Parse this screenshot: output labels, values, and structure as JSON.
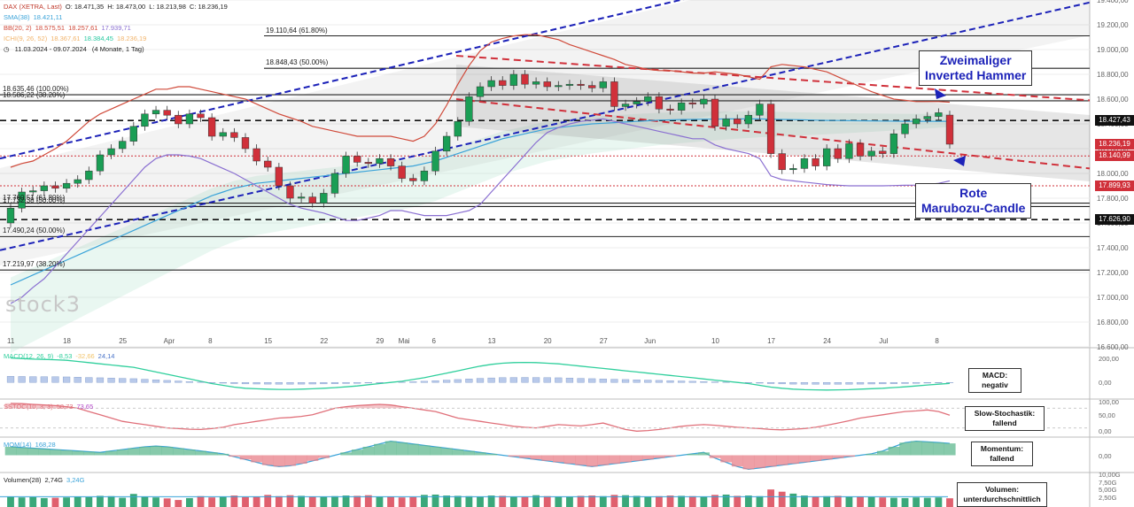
{
  "header": {
    "row1": [
      {
        "text": "DAX (XETRA, Last)",
        "color": "#c0392b"
      },
      {
        "text": "O: 18.471,35",
        "color": "#222"
      },
      {
        "text": "H: 18.473,00",
        "color": "#222"
      },
      {
        "text": "L: 18.213,98",
        "color": "#222"
      },
      {
        "text": "C: 18.236,19",
        "color": "#222"
      }
    ],
    "row2": [
      {
        "text": "SMA(38)",
        "color": "#3aa3d9"
      },
      {
        "text": "18.421,11",
        "color": "#3aa3d9"
      }
    ],
    "row3": [
      {
        "text": "BB(20, 2)",
        "color": "#d04a3a"
      },
      {
        "text": "18.575,51",
        "color": "#d04a3a"
      },
      {
        "text": "18.257,61",
        "color": "#d04a3a"
      },
      {
        "text": "17.939,71",
        "color": "#8a6fd1"
      }
    ],
    "row4": [
      {
        "text": "ICHI(9, 26, 52)",
        "color": "#f2b46b"
      },
      {
        "text": "18.367,61",
        "color": "#f2b46b"
      },
      {
        "text": "18.384,45",
        "color": "#28c8a0"
      },
      {
        "text": "18.236,19",
        "color": "#f2b46b"
      }
    ],
    "period": "11.03.2024 - 09.07.2024",
    "period_detail": "(4 Monate, 1 Tag)"
  },
  "logo": "stock3",
  "annotations": {
    "hammer": [
      "Zweimaliger",
      "Inverted Hammer"
    ],
    "marubozu": [
      "Rote",
      "Marubozu-Candle"
    ]
  },
  "indicator_boxes": {
    "macd": [
      "MACD:",
      "negativ"
    ],
    "stoch": [
      "Slow-Stochastik:",
      "fallend"
    ],
    "mom": [
      "Momentum:",
      "fallend"
    ],
    "vol": [
      "Volumen:",
      "unterdurchschnittlich"
    ]
  },
  "indicator_headers": {
    "macd": [
      {
        "text": "MACD(12, 26, 9)",
        "color": "#2fcf9c"
      },
      {
        "text": "-8,53",
        "color": "#2fcf9c"
      },
      {
        "text": "-32,66",
        "color": "#f2c46b"
      },
      {
        "text": "24,14",
        "color": "#4a74c9"
      }
    ],
    "stoch": [
      {
        "text": "SSTOC(10, 3, 3)",
        "color": "#e0707a"
      },
      {
        "text": "58,73",
        "color": "#e0707a"
      },
      {
        "text": "73,65",
        "color": "#b44ac9"
      }
    ],
    "mom": [
      {
        "text": "MOM(14)",
        "color": "#3aa3d9"
      },
      {
        "text": "168,28",
        "color": "#3aa3d9"
      }
    ],
    "vol": [
      {
        "text": "Volumen(28)",
        "color": "#222"
      },
      {
        "text": "2,74G",
        "color": "#222"
      },
      {
        "text": "3,24G",
        "color": "#3aa3d9"
      }
    ]
  },
  "level_labels": [
    {
      "text": "19.110,64 (61.80%)",
      "value": 19110.64
    },
    {
      "text": "18.848,43 (50.00%)",
      "value": 18848.43
    },
    {
      "text": "18.635,46 (100.00%)",
      "value": 18635.46
    },
    {
      "text": "18.586,22 (38.20%)",
      "value": 18586.22
    },
    {
      "text": "17.760,51 (61.80%)",
      "value": 17760.51
    },
    {
      "text": "17.732,38 (50.00%)",
      "value": 17732.38
    },
    {
      "text": "17.490,24 (50.00%)",
      "value": 17490.24
    },
    {
      "text": "17.219,97 (38.20%)",
      "value": 17219.97
    }
  ],
  "price_boxes": [
    {
      "text": "18.427,43",
      "value": 18427.43,
      "color": "#111111"
    },
    {
      "text": "18.236,19",
      "value": 18236.19,
      "color": "#d0303a"
    },
    {
      "text": "18.140,99",
      "value": 18140.99,
      "color": "#d0303a"
    },
    {
      "text": "17.899,93",
      "value": 17899.93,
      "color": "#d0303a"
    },
    {
      "text": "17.626,90",
      "value": 17626.9,
      "color": "#111111"
    }
  ],
  "indicator_axis": {
    "macd": [
      "200,00",
      "0,00"
    ],
    "stoch": [
      "100,00",
      "50,00",
      "0,00"
    ],
    "mom": [
      "0,00"
    ],
    "vol": [
      "10,00G",
      "7,50G",
      "5,00G",
      "2,50G"
    ]
  },
  "chart_data": {
    "type": "candlestick",
    "y_axis": {
      "min": 16600,
      "max": 19400,
      "ticks": [
        "19.400,00",
        "19.200,00",
        "19.000,00",
        "18.800,00",
        "18.600,00",
        "18.400,00",
        "18.200,00",
        "18.000,00",
        "17.800,00",
        "17.600,00",
        "17.400,00",
        "17.200,00",
        "17.000,00",
        "16.800,00",
        "16.600,00"
      ]
    },
    "x_ticks": [
      {
        "label": "11",
        "i": 0
      },
      {
        "label": "18",
        "i": 5
      },
      {
        "label": "25",
        "i": 10
      },
      {
        "label": "Apr",
        "i": 14
      },
      {
        "label": "8",
        "i": 18
      },
      {
        "label": "15",
        "i": 23
      },
      {
        "label": "22",
        "i": 28
      },
      {
        "label": "29",
        "i": 33
      },
      {
        "label": "Mai",
        "i": 35
      },
      {
        "label": "6",
        "i": 38
      },
      {
        "label": "13",
        "i": 43
      },
      {
        "label": "20",
        "i": 48
      },
      {
        "label": "27",
        "i": 53
      },
      {
        "label": "Jun",
        "i": 57
      },
      {
        "label": "10",
        "i": 63
      },
      {
        "label": "17",
        "i": 68
      },
      {
        "label": "24",
        "i": 73
      },
      {
        "label": "Jul",
        "i": 78
      },
      {
        "label": "8",
        "i": 83
      }
    ],
    "closes": [
      17720,
      17850,
      17860,
      17900,
      17880,
      17920,
      17950,
      18020,
      18150,
      18200,
      18260,
      18380,
      18480,
      18510,
      18470,
      18400,
      18480,
      18450,
      18300,
      18330,
      18290,
      18200,
      18100,
      18050,
      17900,
      17800,
      17810,
      17760,
      17840,
      18000,
      18140,
      18090,
      18080,
      18120,
      18060,
      17960,
      17940,
      18020,
      18180,
      18300,
      18420,
      18620,
      18700,
      18750,
      18710,
      18800,
      18720,
      18740,
      18700,
      18710,
      18720,
      18710,
      18690,
      18740,
      18540,
      18560,
      18580,
      18620,
      18520,
      18510,
      18570,
      18560,
      18600,
      18380,
      18440,
      18400,
      18470,
      18560,
      18160,
      18030,
      18040,
      18120,
      18060,
      18200,
      18120,
      18240,
      18140,
      18180,
      18160,
      18320,
      18400,
      18440,
      18460,
      18490,
      18236
    ],
    "opens": [
      17600,
      17720,
      17850,
      17860,
      17900,
      17880,
      17920,
      17950,
      18020,
      18150,
      18200,
      18260,
      18380,
      18480,
      18510,
      18470,
      18400,
      18480,
      18450,
      18300,
      18330,
      18290,
      18200,
      18100,
      18050,
      17900,
      17800,
      17810,
      17760,
      17840,
      18000,
      18140,
      18090,
      18080,
      18120,
      18060,
      17960,
      17940,
      18020,
      18180,
      18300,
      18420,
      18620,
      18700,
      18750,
      18710,
      18800,
      18720,
      18740,
      18700,
      18710,
      18720,
      18710,
      18690,
      18740,
      18540,
      18560,
      18580,
      18620,
      18520,
      18510,
      18570,
      18560,
      18600,
      18380,
      18440,
      18400,
      18470,
      18560,
      18160,
      18030,
      18040,
      18120,
      18060,
      18200,
      18120,
      18240,
      18140,
      18180,
      18160,
      18320,
      18400,
      18440,
      18460,
      18471
    ],
    "series": [
      {
        "name": "SMA(38)",
        "color": "#3aa3d9",
        "values": [
          17100,
          17140,
          17180,
          17220,
          17260,
          17300,
          17340,
          17380,
          17420,
          17460,
          17500,
          17540,
          17580,
          17620,
          17660,
          17700,
          17740,
          17780,
          17820,
          17850,
          17880,
          17900,
          17920,
          17930,
          17940,
          17950,
          17960,
          17970,
          17980,
          17990,
          18000,
          18010,
          18020,
          18030,
          18040,
          18050,
          18060,
          18080,
          18100,
          18130,
          18160,
          18190,
          18220,
          18250,
          18280,
          18300,
          18320,
          18340,
          18360,
          18370,
          18380,
          18390,
          18400,
          18405,
          18410,
          18415,
          18420,
          18425,
          18430,
          18432,
          18435,
          18436,
          18438,
          18438,
          18440,
          18440,
          18440,
          18440,
          18438,
          18436,
          18434,
          18432,
          18430,
          18428,
          18427,
          18426,
          18425,
          18424,
          18423,
          18422,
          18421,
          18421,
          18421,
          18421,
          18421
        ]
      },
      {
        "name": "BB oben",
        "color": "#d04a3a",
        "values": [
          18050,
          18080,
          18100,
          18150,
          18200,
          18260,
          18340,
          18420,
          18480,
          18520,
          18560,
          18600,
          18640,
          18680,
          18680,
          18700,
          18700,
          18680,
          18660,
          18640,
          18620,
          18600,
          18560,
          18520,
          18480,
          18450,
          18420,
          18380,
          18360,
          18340,
          18320,
          18300,
          18300,
          18300,
          18300,
          18280,
          18260,
          18300,
          18400,
          18550,
          18720,
          18870,
          18990,
          19060,
          19090,
          19110,
          19120,
          19120,
          19100,
          19080,
          19040,
          19010,
          18980,
          18950,
          18920,
          18880,
          18860,
          18840,
          18830,
          18830,
          18820,
          18810,
          18810,
          18820,
          18810,
          18800,
          18780,
          18760,
          18860,
          18880,
          18870,
          18860,
          18840,
          18820,
          18780,
          18740,
          18700,
          18660,
          18630,
          18600,
          18590,
          18580,
          18580,
          18580,
          18575
        ]
      },
      {
        "name": "BB unten",
        "color": "#8a6fd1",
        "values": [
          16950,
          17000,
          17080,
          17150,
          17250,
          17350,
          17450,
          17550,
          17650,
          17750,
          17850,
          17950,
          18050,
          18120,
          18150,
          18150,
          18140,
          18120,
          18080,
          18040,
          18000,
          17950,
          17900,
          17850,
          17800,
          17750,
          17720,
          17700,
          17680,
          17650,
          17620,
          17620,
          17640,
          17660,
          17700,
          17700,
          17680,
          17660,
          17660,
          17660,
          17680,
          17700,
          17750,
          17850,
          17950,
          18050,
          18150,
          18250,
          18330,
          18370,
          18400,
          18420,
          18430,
          18440,
          18420,
          18400,
          18380,
          18360,
          18340,
          18320,
          18300,
          18280,
          18280,
          18230,
          18200,
          18180,
          18160,
          18120,
          17980,
          17950,
          17940,
          17930,
          17920,
          17910,
          17905,
          17900,
          17900,
          17900,
          17900,
          17902,
          17904,
          17906,
          17910,
          17920,
          17940
        ]
      }
    ],
    "volume": [
      3.2,
      3.0,
      3.1,
      2.8,
      2.9,
      3.0,
      3.3,
      3.1,
      3.5,
      3.4,
      2.9,
      4.1,
      3.2,
      3.0,
      2.7,
      2.2,
      2.8,
      3.4,
      3.0,
      3.2,
      3.6,
      3.1,
      3.3,
      3.8,
      3.4,
      3.7,
      3.5,
      3.2,
      3.3,
      3.4,
      3.6,
      3.5,
      3.7,
      3.3,
      3.2,
      3.0,
      3.1,
      3.8,
      3.9,
      3.6,
      3.5,
      3.4,
      3.3,
      3.6,
      3.5,
      3.3,
      3.1,
      3.7,
      3.4,
      3.2,
      3.3,
      3.5,
      3.6,
      3.4,
      3.8,
      3.7,
      3.5,
      3.3,
      3.4,
      3.6,
      3.5,
      3.4,
      3.2,
      3.8,
      3.9,
      3.5,
      3.6,
      3.4,
      5.5,
      4.8,
      4.2,
      3.6,
      3.3,
      3.4,
      3.5,
      3.3,
      3.2,
      3.1,
      3.0,
      2.9,
      2.8,
      3.0,
      2.9,
      3.0,
      2.74
    ],
    "macd": [
      210,
      205,
      200,
      198,
      195,
      190,
      180,
      170,
      160,
      150,
      140,
      130,
      110,
      90,
      70,
      50,
      30,
      10,
      -10,
      -25,
      -40,
      -50,
      -55,
      -58,
      -60,
      -60,
      -58,
      -55,
      -50,
      -45,
      -38,
      -30,
      -20,
      -10,
      0,
      10,
      25,
      40,
      60,
      80,
      100,
      120,
      140,
      155,
      165,
      170,
      172,
      170,
      165,
      160,
      150,
      140,
      130,
      120,
      110,
      100,
      90,
      80,
      70,
      60,
      50,
      40,
      30,
      20,
      10,
      0,
      -10,
      -25,
      -40,
      -50,
      -58,
      -62,
      -64,
      -65,
      -64,
      -62,
      -58,
      -54,
      -50,
      -44,
      -38,
      -30,
      -22,
      -15,
      -8.53
    ],
    "stoch": [
      95,
      94,
      92,
      90,
      88,
      85,
      80,
      70,
      60,
      50,
      40,
      35,
      30,
      25,
      20,
      18,
      16,
      15,
      18,
      22,
      30,
      35,
      40,
      45,
      50,
      52,
      55,
      60,
      70,
      80,
      85,
      88,
      90,
      92,
      90,
      85,
      80,
      75,
      70,
      60,
      50,
      45,
      40,
      35,
      30,
      25,
      22,
      20,
      25,
      30,
      28,
      26,
      30,
      35,
      25,
      15,
      10,
      12,
      15,
      20,
      25,
      28,
      30,
      28,
      25,
      22,
      20,
      18,
      15,
      14,
      16,
      18,
      22,
      28,
      35,
      42,
      50,
      55,
      60,
      65,
      70,
      72,
      75,
      70,
      58.73
    ],
    "momentum": [
      120,
      110,
      100,
      90,
      80,
      70,
      60,
      50,
      40,
      60,
      80,
      100,
      120,
      130,
      120,
      100,
      80,
      60,
      40,
      20,
      -20,
      -60,
      -100,
      -140,
      -160,
      -150,
      -120,
      -80,
      -40,
      0,
      40,
      80,
      120,
      160,
      200,
      180,
      160,
      140,
      120,
      100,
      80,
      60,
      40,
      20,
      0,
      -20,
      -40,
      -60,
      -80,
      -100,
      -120,
      -140,
      -160,
      -140,
      -120,
      -100,
      -80,
      -60,
      -40,
      -20,
      0,
      20,
      40,
      -40,
      -100,
      -160,
      -200,
      -180,
      -160,
      -140,
      -120,
      -100,
      -80,
      -60,
      -40,
      -20,
      0,
      20,
      60,
      120,
      180,
      200,
      190,
      180,
      168.28
    ]
  }
}
